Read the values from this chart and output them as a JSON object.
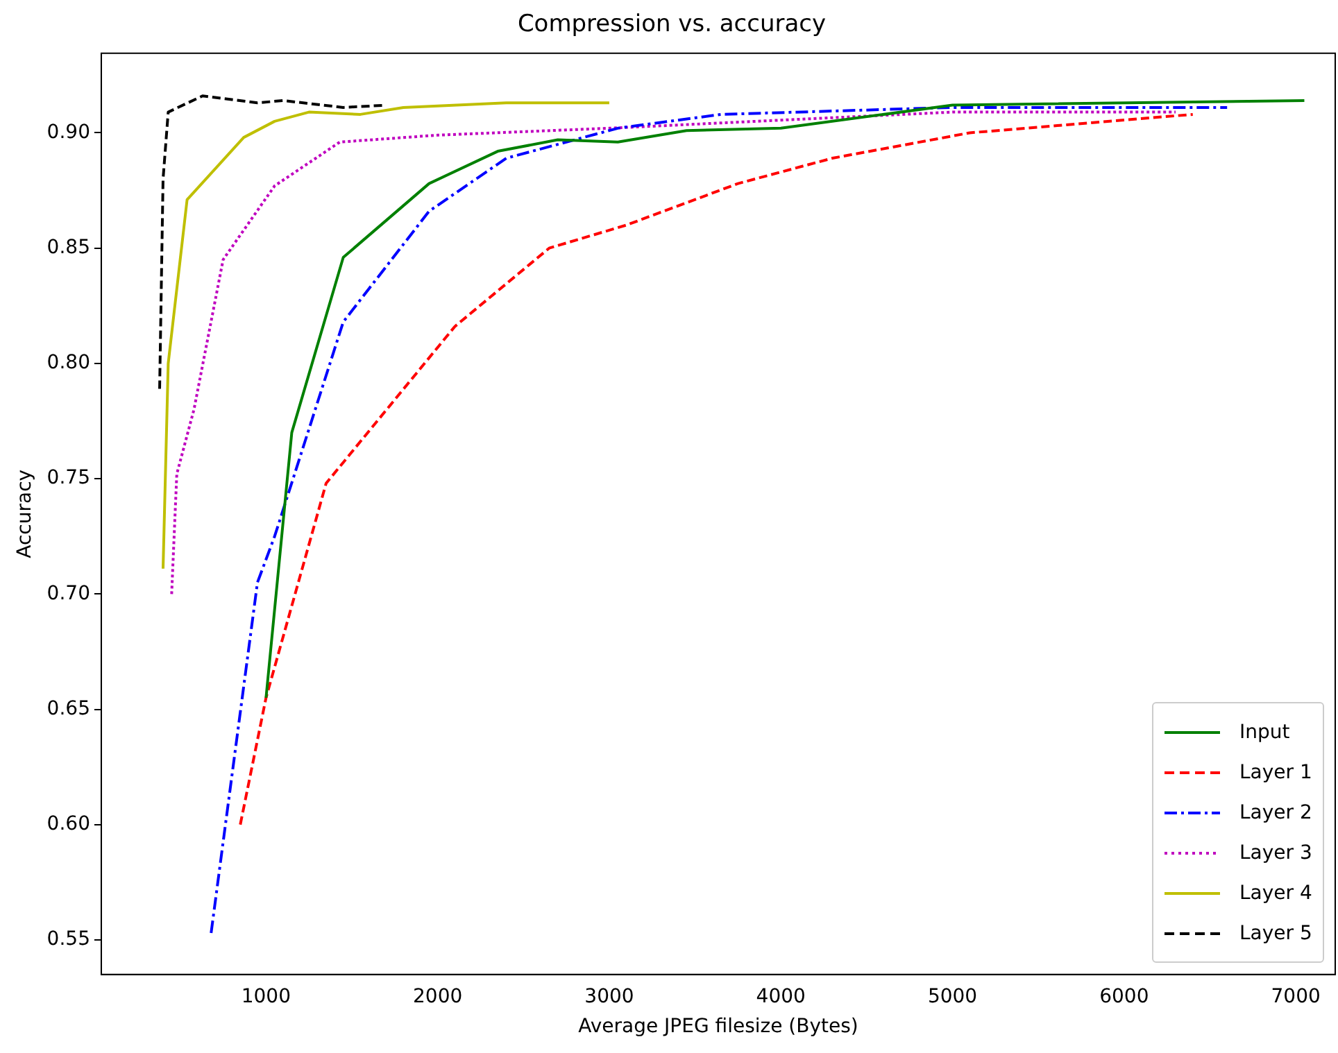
{
  "chart_data": {
    "type": "line",
    "title": "Compression vs. accuracy",
    "xlabel": "Average JPEG filesize (Bytes)",
    "ylabel": "Accuracy",
    "xlim": [
      40,
      7230
    ],
    "ylim": [
      0.535,
      0.9345
    ],
    "xticks": [
      1000,
      2000,
      3000,
      4000,
      5000,
      6000,
      7000
    ],
    "yticks": [
      0.55,
      {
        "value": 0.6,
        "label": "0.60"
      },
      0.65,
      {
        "value": 0.7,
        "label": "0.70"
      },
      0.75,
      {
        "value": 0.8,
        "label": "0.80"
      },
      0.85,
      {
        "value": 0.9,
        "label": "0.90"
      }
    ],
    "grid": false,
    "legend": "bottom right",
    "marker": "none",
    "series": [
      {
        "name": "Input",
        "color": "#008000",
        "line_style": "solid",
        "x": [
          1000,
          1150,
          1450,
          1950,
          2350,
          2700,
          3050,
          3450,
          4000,
          5000,
          7050
        ],
        "values": [
          0.655,
          0.77,
          0.846,
          0.878,
          0.892,
          0.897,
          0.896,
          0.901,
          0.902,
          0.912,
          0.914
        ]
      },
      {
        "name": "Layer 1",
        "color": "#ff0000",
        "line_style": "dashed",
        "x": [
          850,
          1000,
          1350,
          2100,
          2650,
          3100,
          3750,
          4300,
          5100,
          6400
        ],
        "values": [
          0.6,
          0.655,
          0.748,
          0.816,
          0.85,
          0.86,
          0.878,
          0.889,
          0.9,
          0.908
        ]
      },
      {
        "name": "Layer 2",
        "color": "#0000ff",
        "line_style": "dashdot",
        "x": [
          680,
          950,
          1050,
          1450,
          1950,
          2400,
          3050,
          3650,
          5000,
          6600
        ],
        "values": [
          0.553,
          0.705,
          0.725,
          0.818,
          0.866,
          0.889,
          0.902,
          0.908,
          0.911,
          0.911
        ]
      },
      {
        "name": "Layer 3",
        "color": "#bf00bf",
        "line_style": "dotted",
        "x": [
          450,
          480,
          580,
          750,
          1050,
          1430,
          2000,
          3000,
          5000,
          6300
        ],
        "values": [
          0.7,
          0.752,
          0.78,
          0.845,
          0.877,
          0.896,
          0.899,
          0.902,
          0.909,
          0.909
        ]
      },
      {
        "name": "Layer 4",
        "color": "#bfbf00",
        "line_style": "solid",
        "x": [
          400,
          430,
          540,
          870,
          1050,
          1250,
          1550,
          1800,
          2400,
          3000
        ],
        "values": [
          0.711,
          0.8,
          0.871,
          0.898,
          0.905,
          0.909,
          0.908,
          0.911,
          0.913,
          0.913
        ]
      },
      {
        "name": "Layer 5",
        "color": "#000000",
        "line_style": "dashed",
        "x": [
          380,
          400,
          430,
          630,
          950,
          1100,
          1450,
          1700
        ],
        "values": [
          0.789,
          0.88,
          0.909,
          0.916,
          0.913,
          0.914,
          0.911,
          0.912
        ]
      }
    ]
  }
}
